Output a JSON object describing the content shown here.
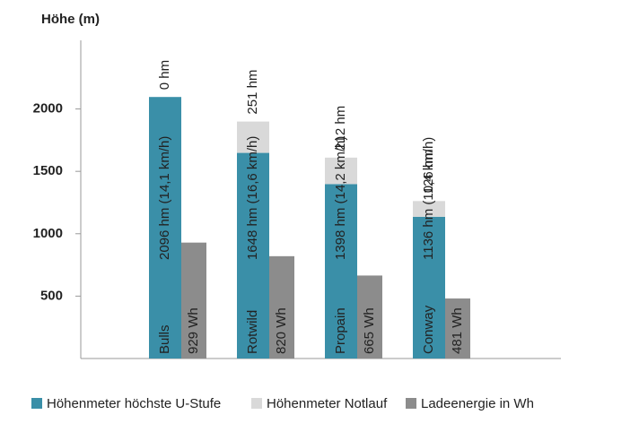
{
  "chart_data": {
    "type": "bar",
    "title": "Höhe (m)",
    "categories": [
      "Bulls",
      "Rotwild",
      "Propain",
      "Conway"
    ],
    "series": [
      {
        "name": "Höhenmeter höchste U-Stufe",
        "color": "#3a8fa8",
        "values": [
          2096,
          1648,
          1398,
          1136
        ],
        "value_labels": [
          "2096 hm (14,1 km/h)",
          "1648 hm (16,6 km/h)",
          "1398 hm (14,2 km/h)",
          "1136 hm (10,4 km/h)"
        ]
      },
      {
        "name": "Höhenmeter Notlauf",
        "color": "#d9d9d9",
        "values": [
          0,
          251,
          212,
          126
        ],
        "value_labels": [
          "0 hm",
          "251 hm",
          "212 hm",
          "126 hm"
        ]
      },
      {
        "name": "Ladeenergie in Wh",
        "color": "#8c8c8c",
        "values": [
          929,
          820,
          665,
          481
        ],
        "value_labels": [
          "929 Wh",
          "820 Wh",
          "665 Wh",
          "481 Wh"
        ]
      }
    ],
    "ylim": [
      0,
      2550
    ],
    "yticks": [
      500,
      1000,
      1500,
      2000
    ]
  }
}
